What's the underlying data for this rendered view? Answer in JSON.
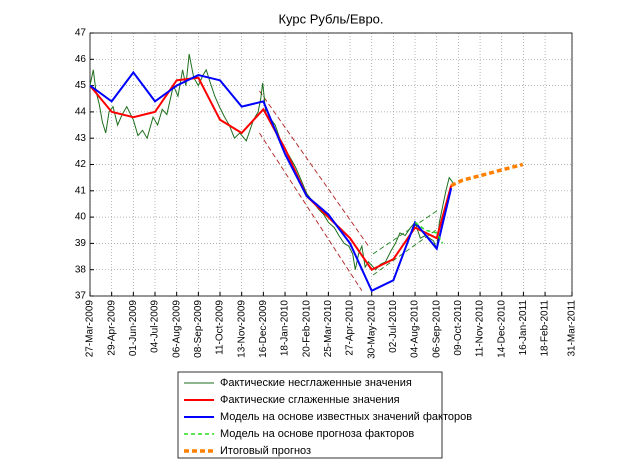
{
  "chart_data": {
    "type": "line",
    "title": "Курс Рубль/Евро.",
    "xlim": [
      "2009-03-27",
      "2011-03-31"
    ],
    "xticks": [
      {
        "value": "2009-03-27",
        "label": "27-Mar-2009"
      },
      {
        "value": "2009-04-29",
        "label": "29-Apr-2009"
      },
      {
        "value": "2009-06-01",
        "label": "01-Jun-2009"
      },
      {
        "value": "2009-07-04",
        "label": "04-Jul-2009"
      },
      {
        "value": "2009-08-06",
        "label": "06-Aug-2009"
      },
      {
        "value": "2009-09-08",
        "label": "08-Sep-2009"
      },
      {
        "value": "2009-10-11",
        "label": "11-Oct-2009"
      },
      {
        "value": "2009-11-13",
        "label": "13-Nov-2009"
      },
      {
        "value": "2009-12-16",
        "label": "16-Dec-2009"
      },
      {
        "value": "2010-01-18",
        "label": "18-Jan-2010"
      },
      {
        "value": "2010-02-20",
        "label": "20-Feb-2010"
      },
      {
        "value": "2010-03-25",
        "label": "25-Mar-2010"
      },
      {
        "value": "2010-04-27",
        "label": "27-Apr-2010"
      },
      {
        "value": "2010-05-30",
        "label": "30-May-2010"
      },
      {
        "value": "2010-07-02",
        "label": "02-Jul-2010"
      },
      {
        "value": "2010-08-04",
        "label": "04-Aug-2010"
      },
      {
        "value": "2010-09-06",
        "label": "06-Sep-2010"
      },
      {
        "value": "2010-10-09",
        "label": "09-Oct-2010"
      },
      {
        "value": "2010-11-11",
        "label": "11-Nov-2010"
      },
      {
        "value": "2010-12-14",
        "label": "14-Dec-2010"
      },
      {
        "value": "2011-01-16",
        "label": "16-Jan-2011"
      },
      {
        "value": "2011-02-18",
        "label": "18-Feb-2011"
      },
      {
        "value": "2011-03-31",
        "label": "31-Mar-2011"
      }
    ],
    "ylim": [
      37,
      47
    ],
    "yticks": [
      37,
      38,
      39,
      40,
      41,
      42,
      43,
      44,
      45,
      46,
      47
    ],
    "grid": true,
    "series": [
      {
        "name": "Фактические несглаженные значения",
        "color": "#1e6e1e",
        "width": 1,
        "dash": "none",
        "x": [
          "2009-03-27",
          "2009-04-01",
          "2009-04-05",
          "2009-04-10",
          "2009-04-15",
          "2009-04-20",
          "2009-04-25",
          "2009-05-01",
          "2009-05-08",
          "2009-05-15",
          "2009-05-22",
          "2009-06-01",
          "2009-06-08",
          "2009-06-15",
          "2009-06-22",
          "2009-07-01",
          "2009-07-08",
          "2009-07-15",
          "2009-07-22",
          "2009-08-01",
          "2009-08-08",
          "2009-08-15",
          "2009-08-20",
          "2009-08-25",
          "2009-09-01",
          "2009-09-08",
          "2009-09-15",
          "2009-09-20",
          "2009-09-25",
          "2009-10-03",
          "2009-10-10",
          "2009-10-18",
          "2009-10-25",
          "2009-11-02",
          "2009-11-10",
          "2009-11-20",
          "2009-12-01",
          "2009-12-08",
          "2009-12-12",
          "2009-12-15",
          "2009-12-20",
          "2009-12-25",
          "2010-01-03",
          "2010-01-10",
          "2010-01-18",
          "2010-01-25",
          "2010-02-03",
          "2010-02-10",
          "2010-02-20",
          "2010-03-01",
          "2010-03-10",
          "2010-03-18",
          "2010-03-25",
          "2010-04-03",
          "2010-04-10",
          "2010-04-18",
          "2010-04-25",
          "2010-05-01",
          "2010-05-05",
          "2010-05-10",
          "2010-05-15",
          "2010-05-20",
          "2010-05-25",
          "2010-06-05",
          "2010-06-12",
          "2010-06-20",
          "2010-06-28",
          "2010-07-05",
          "2010-07-12",
          "2010-07-20",
          "2010-07-28",
          "2010-08-04",
          "2010-08-12",
          "2010-08-20",
          "2010-09-01",
          "2010-09-06",
          "2010-09-10",
          "2010-09-15",
          "2010-09-20",
          "2010-09-25",
          "2010-10-01"
        ],
        "values": [
          45.0,
          45.6,
          44.8,
          44.3,
          43.6,
          43.2,
          44.0,
          44.2,
          43.5,
          43.9,
          44.2,
          43.7,
          43.1,
          43.3,
          43.0,
          43.8,
          43.5,
          44.1,
          43.9,
          45.0,
          44.6,
          45.6,
          45.0,
          46.2,
          45.3,
          45.0,
          45.4,
          45.6,
          45.2,
          44.6,
          44.2,
          43.8,
          43.5,
          43.0,
          43.2,
          42.9,
          43.7,
          44.0,
          44.5,
          45.1,
          43.9,
          43.8,
          43.5,
          43.0,
          42.6,
          42.3,
          41.9,
          41.5,
          40.9,
          40.6,
          40.3,
          40.1,
          39.8,
          39.6,
          39.3,
          39.0,
          38.9,
          38.6,
          38.0,
          38.6,
          38.9,
          38.1,
          38.3,
          38.0,
          38.2,
          38.3,
          38.7,
          39.0,
          39.4,
          39.3,
          39.6,
          39.8,
          39.2,
          39.3,
          39.1,
          38.8,
          39.8,
          40.4,
          41.0,
          41.5,
          41.3
        ]
      },
      {
        "name": "Фактические сглаженные значения",
        "color": "#ff0000",
        "width": 2,
        "dash": "none",
        "x": [
          "2009-03-27",
          "2009-04-29",
          "2009-06-01",
          "2009-07-04",
          "2009-08-06",
          "2009-09-08",
          "2009-10-11",
          "2009-11-13",
          "2009-12-16",
          "2010-01-18",
          "2010-02-20",
          "2010-03-25",
          "2010-04-27",
          "2010-05-30",
          "2010-07-02",
          "2010-08-04",
          "2010-09-06",
          "2010-09-28"
        ],
        "values": [
          45.0,
          44.0,
          43.8,
          44.0,
          45.2,
          45.3,
          43.7,
          43.2,
          44.1,
          42.6,
          40.8,
          40.0,
          39.2,
          38.0,
          38.4,
          39.6,
          39.2,
          41.2
        ]
      },
      {
        "name": "Модель на основе известных значений факторов",
        "color": "#0000ff",
        "width": 2,
        "dash": "none",
        "x": [
          "2009-03-27",
          "2009-04-29",
          "2009-06-01",
          "2009-07-04",
          "2009-08-06",
          "2009-09-08",
          "2009-10-11",
          "2009-11-13",
          "2009-12-16",
          "2010-01-18",
          "2010-02-20",
          "2010-03-25",
          "2010-04-27",
          "2010-05-30",
          "2010-07-02",
          "2010-08-04",
          "2010-09-06",
          "2010-09-28"
        ],
        "values": [
          45.0,
          44.4,
          45.5,
          44.4,
          45.0,
          45.4,
          45.2,
          44.2,
          44.4,
          42.4,
          40.8,
          40.1,
          39.0,
          37.2,
          37.6,
          39.8,
          38.8,
          41.1
        ]
      },
      {
        "name": "Модель на основе прогноза факторов",
        "color": "#22dd22",
        "width": 1.5,
        "dash": "4 3",
        "x": [
          "2010-08-04",
          "2010-08-20",
          "2010-09-06",
          "2010-09-15"
        ],
        "values": [
          39.8,
          39.5,
          39.4,
          39.0
        ]
      },
      {
        "name": "Итоговый прогноз",
        "color": "#ff8000",
        "width": 3.5,
        "dash": "5 3",
        "x": [
          "2010-09-28",
          "2010-10-15",
          "2010-11-15",
          "2010-12-15",
          "2011-01-15"
        ],
        "values": [
          41.2,
          41.4,
          41.6,
          41.8,
          42.0
        ]
      }
    ],
    "trend_lines": [
      {
        "color": "#b02020",
        "x": [
          "2009-12-10",
          "2010-05-25"
        ],
        "values": [
          44.8,
          38.9
        ]
      },
      {
        "color": "#b02020",
        "x": [
          "2009-12-10",
          "2010-05-15"
        ],
        "values": [
          43.2,
          37.2
        ]
      },
      {
        "color": "#208020",
        "x": [
          "2010-06-01",
          "2010-09-10"
        ],
        "values": [
          38.6,
          40.3
        ]
      },
      {
        "color": "#208020",
        "x": [
          "2010-06-01",
          "2010-09-10"
        ],
        "values": [
          37.8,
          39.6
        ]
      }
    ]
  }
}
